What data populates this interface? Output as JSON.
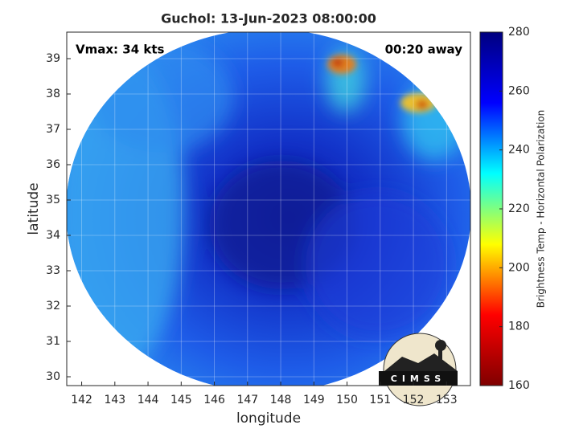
{
  "chart_data": {
    "type": "image",
    "title": "Guchol: 13-Jun-2023 08:00:00",
    "annotations": [
      "Vmax: 34 kts",
      "00:20 away"
    ],
    "xlabel": "longitude",
    "ylabel": "latitude",
    "xlim": [
      141.55,
      153.72
    ],
    "xticks": [
      142,
      143,
      144,
      145,
      146,
      147,
      148,
      149,
      150,
      151,
      152,
      153
    ],
    "ylim": [
      29.75,
      39.75
    ],
    "yticks": [
      30,
      31,
      32,
      33,
      34,
      35,
      36,
      37,
      38,
      39
    ],
    "grid": true,
    "colorbar": {
      "label": "Brightness Temp - Horizontal Polarization",
      "clim": [
        160,
        280
      ],
      "ticks": [
        160,
        180,
        200,
        220,
        240,
        260,
        280
      ],
      "colormap": [
        "#7f0000",
        "#ff0000",
        "#ffff00",
        "#00ffff",
        "#0000ff",
        "#00007f"
      ]
    },
    "logo": "CIMSS"
  }
}
